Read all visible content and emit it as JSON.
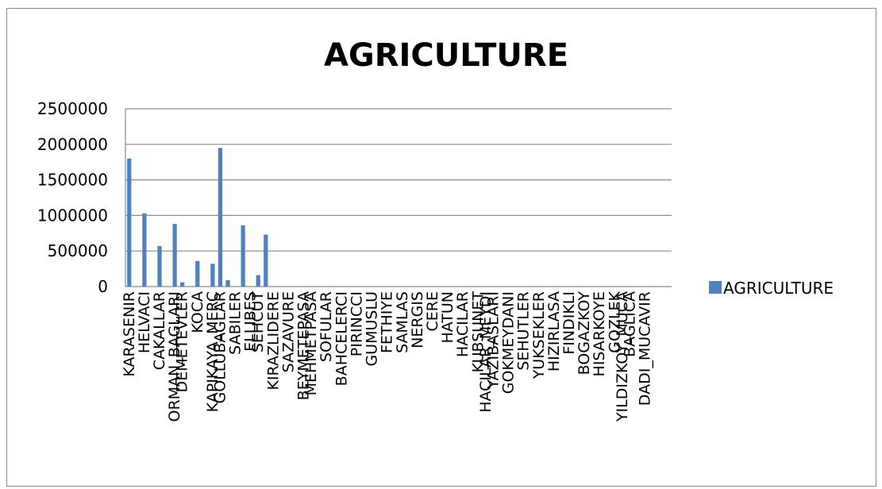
{
  "chart_data": {
    "type": "bar",
    "title": "AGRICULTURE",
    "xlabel": "",
    "ylabel": "",
    "ylim": [
      0,
      2500000
    ],
    "yticks": [
      0,
      500000,
      1000000,
      1500000,
      2000000,
      2500000
    ],
    "grid": true,
    "legend_position": "right",
    "categories": [
      "KARASENIR",
      "",
      "HELVACI",
      "",
      "CAKALLAR",
      "",
      "ORMAN_BAGLARI",
      "DEMETEVLER",
      "",
      "KOCA",
      "",
      "KAPIKAYA_MERC",
      "GOLLUBAGLAR",
      "",
      "SABILER",
      "",
      "ELLIBES",
      "SEHCUT",
      "",
      "KIRAZLIDERE",
      "",
      "SAZAVURE",
      "",
      "BEYMETEPASA",
      "MEHMETPASA",
      "",
      "SOFULAR",
      "",
      "BAHCELERCI",
      "",
      "PIRINCCI",
      "",
      "GUMUSLU",
      "",
      "FETHIYE",
      "",
      "SAMLAS",
      "",
      "NERGIS",
      "",
      "CERE",
      "",
      "HATUN",
      "",
      "HACILAR",
      "",
      "KUBSUNET",
      "HACILAR_MEYDI",
      "YAZIBASLARI",
      "",
      "GOKMEYDANI",
      "",
      "SEHUTLER",
      "",
      "YUKSEKLER",
      "",
      "HIZIRLASA",
      "",
      "FINDIKLI",
      "",
      "BOGAZKOY",
      "",
      "HISARKOYE",
      "",
      "GOZLEK",
      "YILDIZKOY_MUCA",
      "BAGLICA",
      "",
      "DADI_MUCAVIR",
      "",
      "",
      ""
    ],
    "series": [
      {
        "name": "AGRICULTURE",
        "color": "#4f81bd",
        "values": [
          1800000,
          0,
          1030000,
          0,
          570000,
          0,
          880000,
          60000,
          0,
          360000,
          0,
          320000,
          1950000,
          90000,
          0,
          860000,
          0,
          160000,
          730000,
          0,
          0,
          0,
          0,
          0,
          0,
          0,
          0,
          0,
          0,
          0,
          0,
          0,
          0,
          0,
          0,
          0,
          0,
          0,
          0,
          0,
          0,
          0,
          0,
          0,
          0,
          0,
          0,
          0,
          0,
          0,
          0,
          0,
          0,
          0,
          0,
          0,
          0,
          0,
          0,
          0,
          0,
          0,
          0,
          0,
          0,
          0,
          0,
          0,
          0,
          0,
          0,
          0
        ]
      }
    ]
  },
  "legend": {
    "label": "AGRICULTURE",
    "color": "#4f81bd"
  }
}
